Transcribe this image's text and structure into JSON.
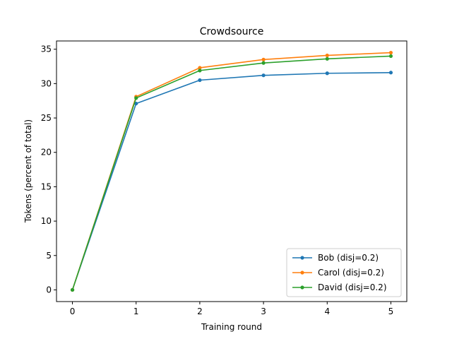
{
  "chart_data": {
    "type": "line",
    "title": "Crowdsource",
    "xlabel": "Training round",
    "ylabel": "Tokens (percent of total)",
    "x": [
      0,
      1,
      2,
      3,
      4,
      5
    ],
    "xticks": [
      "0",
      "1",
      "2",
      "3",
      "4",
      "5"
    ],
    "yticks": [
      "0",
      "5",
      "10",
      "15",
      "20",
      "25",
      "30",
      "35"
    ],
    "xlim": [
      -0.25,
      5.25
    ],
    "ylim": [
      -1.7,
      36.2
    ],
    "grid": false,
    "legend_position": "lower-right",
    "series": [
      {
        "name": "Bob (disj=0.2)",
        "color": "#1f77b4",
        "values": [
          0.0,
          27.1,
          30.5,
          31.2,
          31.5,
          31.6
        ]
      },
      {
        "name": "Carol (disj=0.2)",
        "color": "#ff7f0e",
        "values": [
          0.0,
          28.1,
          32.3,
          33.5,
          34.1,
          34.5
        ]
      },
      {
        "name": "David (disj=0.2)",
        "color": "#2ca02c",
        "values": [
          0.0,
          27.9,
          31.9,
          33.0,
          33.6,
          34.0
        ]
      }
    ]
  }
}
